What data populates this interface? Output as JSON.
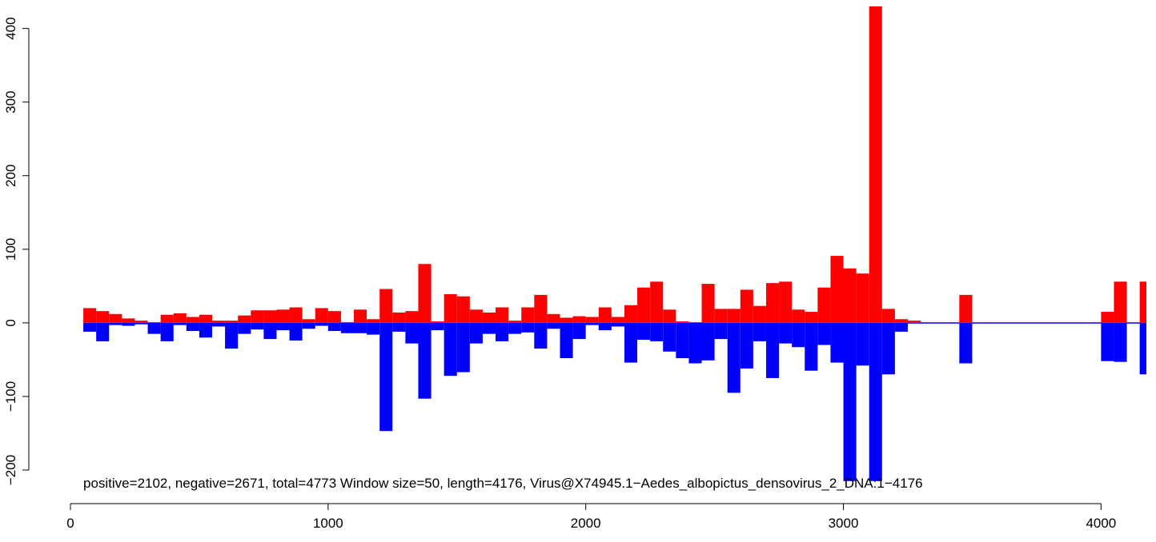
{
  "chart_data": {
    "type": "bar",
    "title": "",
    "xlabel": "",
    "ylabel": "",
    "xlim": [
      0,
      4176
    ],
    "ylim": [
      -200,
      430
    ],
    "x_ticks": [
      0,
      1000,
      2000,
      3000,
      4000
    ],
    "y_ticks": [
      -200,
      -100,
      0,
      100,
      200,
      300,
      400
    ],
    "window_size": 50,
    "annotation": "positive=2102, negative=2671, total=4773    Window size=50, length=4176, Virus@X74945.1−Aedes_albopictus_densovirus_2_DNA:1−4176",
    "bin_starts": [
      50,
      100,
      150,
      200,
      250,
      300,
      350,
      400,
      450,
      500,
      550,
      600,
      650,
      700,
      750,
      800,
      850,
      900,
      950,
      1000,
      1050,
      1100,
      1150,
      1200,
      1250,
      1300,
      1350,
      1400,
      1450,
      1500,
      1550,
      1600,
      1650,
      1700,
      1750,
      1800,
      1850,
      1900,
      1950,
      2000,
      2050,
      2100,
      2150,
      2200,
      2250,
      2300,
      2350,
      2400,
      2450,
      2500,
      2550,
      2600,
      2650,
      2700,
      2750,
      2800,
      2850,
      2900,
      2950,
      3000,
      3050,
      3100,
      3150,
      3200,
      3250,
      3300,
      3350,
      3400,
      3450,
      3500,
      3550,
      3600,
      3650,
      3700,
      3750,
      3800,
      3850,
      3900,
      3950,
      4000,
      4050,
      4100,
      4150
    ],
    "series": [
      {
        "name": "positive",
        "color": "#ff0000",
        "values": [
          20,
          16,
          12,
          6,
          3,
          1,
          11,
          13,
          8,
          11,
          3,
          3,
          10,
          17,
          17,
          18,
          21,
          5,
          20,
          16,
          1,
          18,
          5,
          46,
          14,
          16,
          80,
          2,
          39,
          36,
          18,
          14,
          21,
          3,
          21,
          38,
          12,
          7,
          9,
          8,
          21,
          8,
          24,
          48,
          56,
          18,
          2,
          1,
          53,
          19,
          19,
          45,
          23,
          54,
          56,
          18,
          15,
          48,
          91,
          74,
          67,
          430,
          19,
          5,
          3,
          1,
          1,
          1,
          38,
          1,
          1,
          1,
          1,
          1,
          1,
          1,
          1,
          1,
          1,
          15,
          56,
          1,
          56
        ]
      },
      {
        "name": "negative",
        "color": "#0000ff",
        "values": [
          -12,
          -25,
          -3,
          -4,
          -2,
          -15,
          -25,
          -3,
          -11,
          -20,
          -5,
          -35,
          -15,
          -9,
          -22,
          -10,
          -24,
          -8,
          -4,
          -11,
          -14,
          -14,
          -16,
          -147,
          -12,
          -28,
          -103,
          -10,
          -72,
          -67,
          -28,
          -15,
          -25,
          -15,
          -13,
          -35,
          -8,
          -48,
          -22,
          -3,
          -10,
          -5,
          -54,
          -23,
          -25,
          -39,
          -48,
          -55,
          -51,
          -22,
          -95,
          -62,
          -25,
          -75,
          -28,
          -33,
          -65,
          -30,
          -54,
          -215,
          -58,
          -215,
          -70,
          -12,
          -1,
          -1,
          -1,
          -1,
          -55,
          -1,
          -1,
          -1,
          -1,
          -1,
          -1,
          -1,
          -1,
          -1,
          -1,
          -52,
          -53,
          -1,
          -70
        ]
      }
    ]
  }
}
